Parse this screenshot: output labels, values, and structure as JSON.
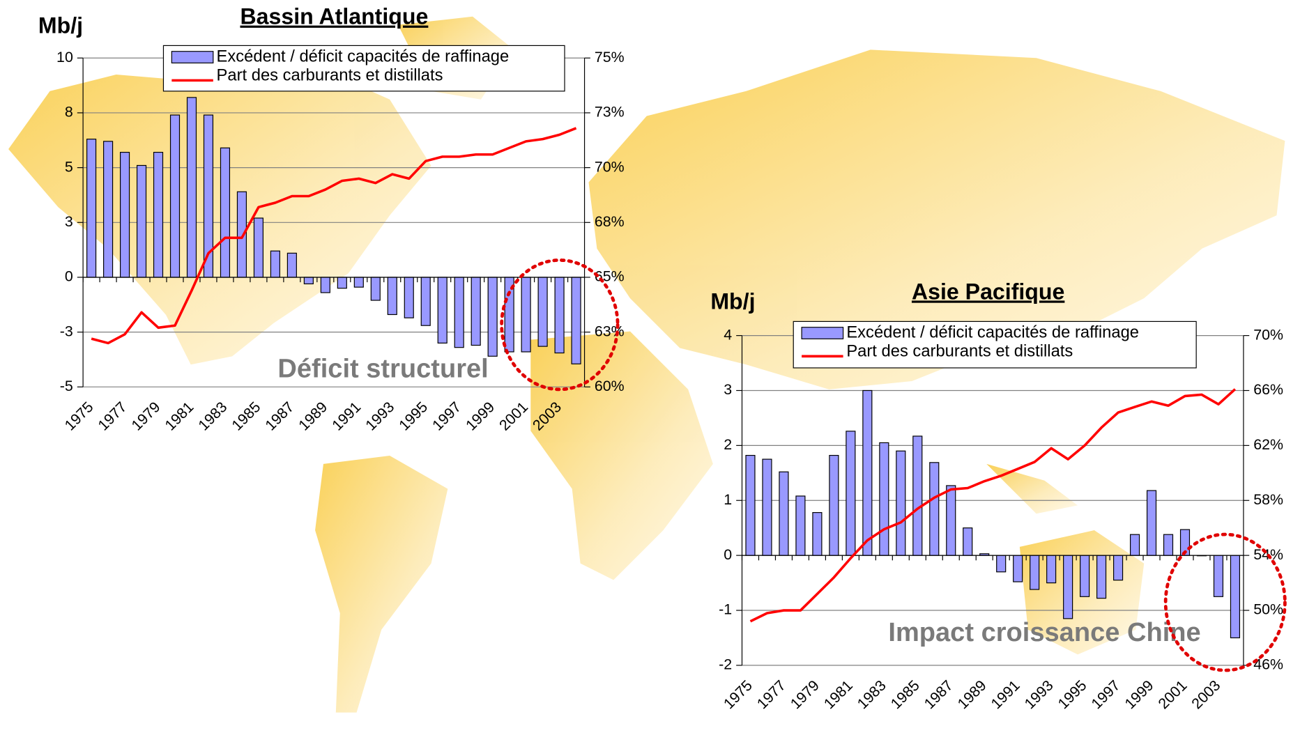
{
  "chart_data": [
    {
      "type": "combo",
      "title": "Bassin Atlantique",
      "y_label": "Mb/j",
      "annotation": "Déficit structurel",
      "categories": [
        "1975",
        null,
        "1977",
        null,
        "1979",
        null,
        "1981",
        null,
        "1983",
        null,
        "1985",
        null,
        "1987",
        null,
        "1989",
        null,
        "1991",
        null,
        "1993",
        null,
        "1995",
        null,
        "1997",
        null,
        "1999",
        null,
        "2001",
        null,
        "2003",
        null
      ],
      "series": [
        {
          "name": "Excédent / déficit capacités de raffinage",
          "type": "bar",
          "color": "#9999ff",
          "values": [
            6.3,
            6.2,
            5.7,
            5.1,
            5.7,
            7.4,
            8.2,
            7.4,
            5.9,
            3.9,
            2.7,
            1.2,
            1.1,
            -0.3,
            -0.7,
            -0.5,
            -0.45,
            -1.05,
            -1.7,
            -1.85,
            -2.2,
            -3.0,
            -3.2,
            -3.1,
            -3.6,
            -3.4,
            -3.4,
            -3.15,
            -3.45,
            -3.95
          ]
        },
        {
          "name": "Part des carburants et distillats",
          "type": "line",
          "color": "#ff0000",
          "axis": "y2",
          "values": [
            62.2,
            62.0,
            62.4,
            63.4,
            62.7,
            62.8,
            64.4,
            66.1,
            66.8,
            66.8,
            68.2,
            68.4,
            68.7,
            68.7,
            69.0,
            69.4,
            69.5,
            69.3,
            69.7,
            69.5,
            70.3,
            70.5,
            70.5,
            70.6,
            70.6,
            70.9,
            71.2,
            71.3,
            71.5,
            71.8
          ]
        }
      ],
      "ylim": [
        -5,
        10
      ],
      "yticks": [
        10,
        {
          "value": 7.5,
          "label": "8"
        },
        5,
        {
          "value": 2.5,
          "label": "3"
        },
        0,
        {
          "value": -2.5,
          "label": "-3"
        },
        -5
      ],
      "y2lim": [
        60,
        75
      ],
      "y2ticks": [
        {
          "value": 75,
          "label": "75%"
        },
        {
          "value": 72.5,
          "label": "73%"
        },
        {
          "value": 70,
          "label": "70%"
        },
        {
          "value": 67.5,
          "label": "68%"
        },
        {
          "value": 65,
          "label": "65%"
        },
        {
          "value": 62.5,
          "label": "63%"
        },
        {
          "value": 60,
          "label": "60%"
        }
      ],
      "grid": true
    },
    {
      "type": "combo",
      "title": "Asie Pacifique",
      "y_label": "Mb/j",
      "annotation": "Impact croissance Chine",
      "categories": [
        "1975",
        null,
        "1977",
        null,
        "1979",
        null,
        "1981",
        null,
        "1983",
        null,
        "1985",
        null,
        "1987",
        null,
        "1989",
        null,
        "1991",
        null,
        "1993",
        null,
        "1995",
        null,
        "1997",
        null,
        "1999",
        null,
        "2001",
        null,
        "2003",
        null
      ],
      "series": [
        {
          "name": "Excédent / déficit capacités de raffinage",
          "type": "bar",
          "color": "#9999ff",
          "values": [
            1.82,
            1.75,
            1.52,
            1.08,
            0.78,
            1.82,
            2.26,
            3.0,
            2.05,
            1.9,
            2.17,
            1.69,
            1.27,
            0.5,
            0.03,
            -0.3,
            -0.48,
            -0.62,
            -0.5,
            -1.15,
            -0.75,
            -0.78,
            -0.45,
            0.38,
            1.18,
            0.38,
            0.47,
            0,
            -0.75,
            -1.5
          ]
        },
        {
          "name": "Part des carburants et distillats",
          "type": "line",
          "color": "#ff0000",
          "axis": "y2",
          "values": [
            49.2,
            49.8,
            50.0,
            50.0,
            51.2,
            52.4,
            53.8,
            55.1,
            55.9,
            56.4,
            57.4,
            58.2,
            58.8,
            58.9,
            59.4,
            59.8,
            60.3,
            60.8,
            61.8,
            61.0,
            62.0,
            63.3,
            64.4,
            64.8,
            65.2,
            64.9,
            65.6,
            65.7,
            65.0,
            66.1
          ]
        }
      ],
      "ylim": [
        -2,
        4
      ],
      "yticks": [
        4,
        3,
        2,
        1,
        0,
        -1,
        -2
      ],
      "y2lim": [
        46,
        70
      ],
      "y2ticks": [
        {
          "value": 70,
          "label": "70%"
        },
        {
          "value": 66,
          "label": "66%"
        },
        {
          "value": 62,
          "label": "62%"
        },
        {
          "value": 58,
          "label": "58%"
        },
        {
          "value": 54,
          "label": "54%"
        },
        {
          "value": 50,
          "label": "50%"
        },
        {
          "value": 46,
          "label": "46%"
        }
      ],
      "grid": true
    }
  ]
}
